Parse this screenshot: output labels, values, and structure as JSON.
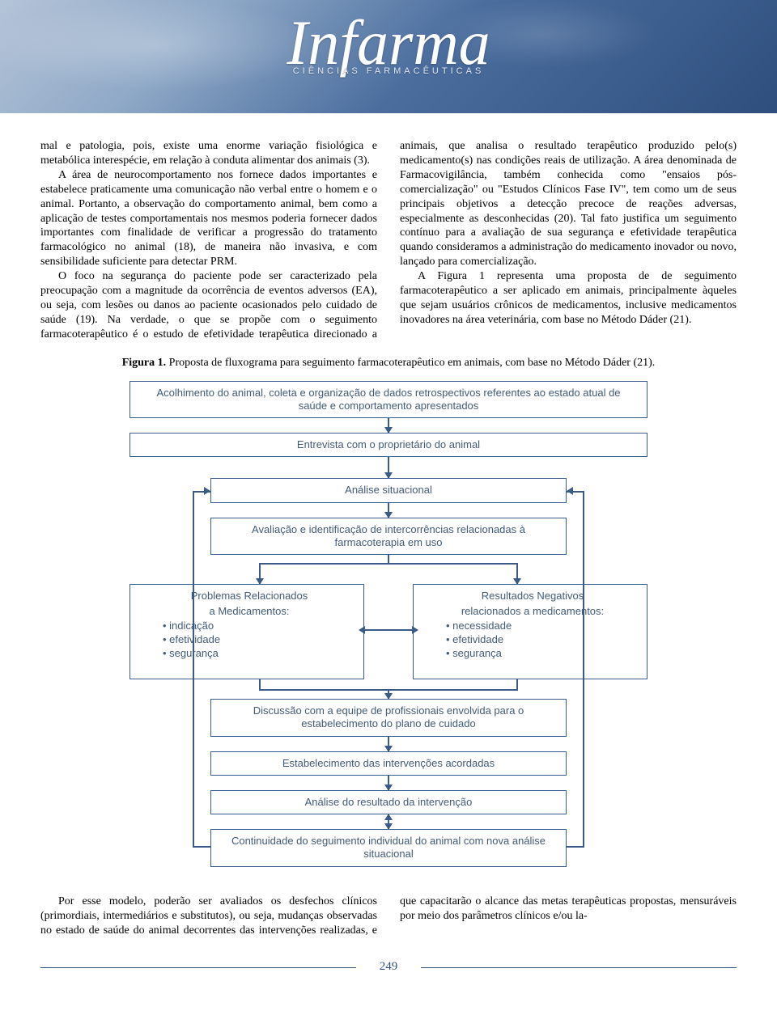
{
  "header": {
    "logo_text": "Infarma",
    "logo_subtitle": "CIÊNCIAS FARMACÊUTICAS"
  },
  "body_text": {
    "col_left_p1": "mal e patologia, pois, existe uma enorme variação fisiológica e metabólica interespécie, em relação à conduta alimentar dos animais (3).",
    "col_left_p2": "A área de neurocomportamento nos fornece dados importantes e estabelece praticamente uma comunicação não verbal entre o homem e o animal. Portanto, a observação do comportamento animal, bem como a aplicação de testes comportamentais nos mesmos poderia fornecer dados importantes com finalidade de verificar a progressão do tratamento farmacológico no animal (18), de maneira não invasiva, e com sensibilidade suficiente para detectar PRM.",
    "col_left_p3_a": "O foco na segurança do paciente pode ser caracterizado pela preocupação com a magnitude da ocorrência de eventos adversos (EA), ou seja, com lesões ou danos ao paciente ocasionados pelo cuidado de saúde (19). Na verdade, o que se propõe com o seguimento farmaco",
    "col_right_p1": "terapêutico é o estudo de efetividade terapêutica direcionado a animais, que analisa o resultado terapêutico produzido pelo(s) medicamento(s) nas condições reais de utilização. A área denominada de Farmacovigilância, também conhecida como \"ensaios pós-comercialização\" ou \"Estudos Clínicos Fase IV\", tem como um de seus principais objetivos a detecção precoce de reações adversas, especialmente as desconhecidas (20). Tal fato justifica um seguimento contínuo para a avaliação de sua segurança e efetividade terapêutica quando consideramos a administração do medicamento inovador ou novo, lançado para comercialização.",
    "col_right_p2": "A Figura 1 representa uma proposta de de seguimento farmacoterapêutico a ser aplicado em animais, principalmente àqueles que sejam usuários crônicos de medicamentos, inclusive medicamentos inovadores na área veterinária, com base no Método Dáder (21)."
  },
  "figure": {
    "caption_bold": "Figura 1.",
    "caption_rest": " Proposta de fluxograma para seguimento farmacoterapêutico em animais, com base no Método Dáder (21).",
    "boxes": {
      "b1": "Acolhimento do animal, coleta e organização de dados retrospectivos referentes ao estado atual de saúde e comportamento apresentados",
      "b2": "Entrevista com o proprietário do animal",
      "b3": "Análise situacional",
      "b4": "Avaliação e identificação de intercorrências relacionadas à farmacoterapia em uso",
      "b5_title1": "Problemas Relacionados",
      "b5_title2": "a Medicamentos:",
      "b5_i1": "indicação",
      "b5_i2": "efetividade",
      "b5_i3": "segurança",
      "b6_title1": "Resultados Negativos",
      "b6_title2": "relacionados a medicamentos:",
      "b6_i1": "necessidade",
      "b6_i2": "efetividade",
      "b6_i3": "segurança",
      "b7": "Discussão com a equipe de profissionais envolvida para o estabelecimento do plano de cuidado",
      "b8": "Estabelecimento das intervenções acordadas",
      "b9": "Análise do resultado da intervenção",
      "b10": "Continuidade do seguimento individual do animal com nova análise situacional"
    },
    "styling": {
      "box_border_color": "#385c8c",
      "box_text_color": "#415b77",
      "connector_color": "#3a5a88",
      "font_family": "Trebuchet MS",
      "font_size_pt": 10
    }
  },
  "closing_text": {
    "left": "Por esse modelo, poderão ser avaliados os desfechos clínicos (primordiais, intermediários e substitutos), ou seja, mudanças observadas no estado de saúde do",
    "right": "animal decorrentes das intervenções realizadas, e que capacitarão o alcance das metas terapêuticas propostas, mensuráveis por meio dos parâmetros clínicos e/ou la-"
  },
  "page_number": "249",
  "colors": {
    "body_text": "#000000",
    "header_gradient_from": "#b5c4d8",
    "header_gradient_to": "#2e4f7e",
    "footer_rule": "#2e4f7e"
  }
}
